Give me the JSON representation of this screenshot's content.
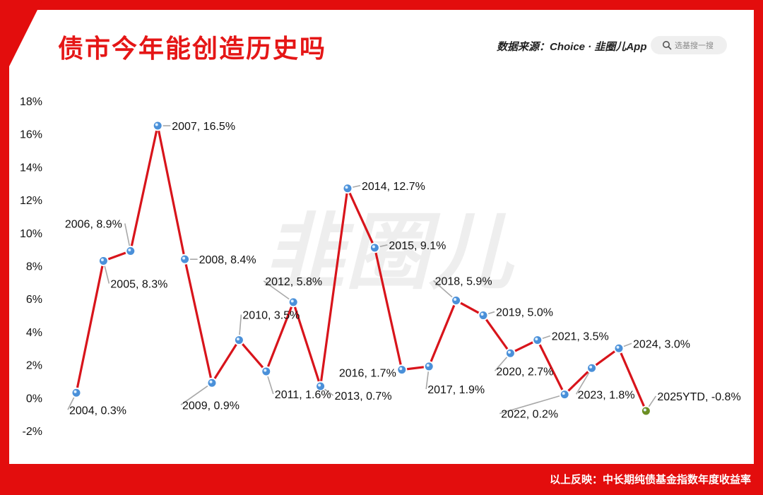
{
  "header": {
    "title": "债市今年能创造历史吗",
    "source": "数据来源：Choice · 韭圈儿App",
    "search_placeholder": "选基搜一搜"
  },
  "footer": {
    "text": "以上反映：中长期纯债基金指数年度收益率"
  },
  "watermark": "韭圈儿",
  "colors": {
    "accent": "#e30d0d",
    "line": "#d8141b",
    "marker": "#4a90d9",
    "marker_last": "#6b8e23"
  },
  "chart_data": {
    "type": "line",
    "categories": [
      "2004",
      "2005",
      "2006",
      "2007",
      "2008",
      "2009",
      "2010",
      "2011",
      "2012",
      "2013",
      "2014",
      "2015",
      "2016",
      "2017",
      "2018",
      "2019",
      "2020",
      "2021",
      "2022",
      "2023",
      "2024",
      "2025YTD"
    ],
    "values": [
      0.3,
      8.3,
      8.9,
      16.5,
      8.4,
      0.9,
      3.5,
      1.6,
      5.8,
      0.7,
      12.7,
      9.1,
      1.7,
      1.9,
      5.9,
      5.0,
      2.7,
      3.5,
      0.2,
      1.8,
      3.0,
      -0.8
    ],
    "data_labels": [
      "2004, 0.3%",
      "2005, 8.3%",
      "2006, 8.9%",
      "2007, 16.5%",
      "2008, 8.4%",
      "2009, 0.9%",
      "2010, 3.5%",
      "2011, 1.6%",
      "2012, 5.8%",
      "2013, 0.7%",
      "2014, 12.7%",
      "2015, 9.1%",
      "2016, 1.7%",
      "2017, 1.9%",
      "2018, 5.9%",
      "2019, 5.0%",
      "2020, 2.7%",
      "2021, 3.5%",
      "2022, 0.2%",
      "2023, 1.8%",
      "2024, 3.0%",
      "2025YTD, -0.8%"
    ],
    "y_ticks": [
      "18%",
      "16%",
      "14%",
      "12%",
      "10%",
      "8%",
      "6%",
      "4%",
      "2%",
      "0%",
      "-2%"
    ],
    "ylim": [
      -2,
      18
    ],
    "grid": false,
    "legend": "none"
  }
}
